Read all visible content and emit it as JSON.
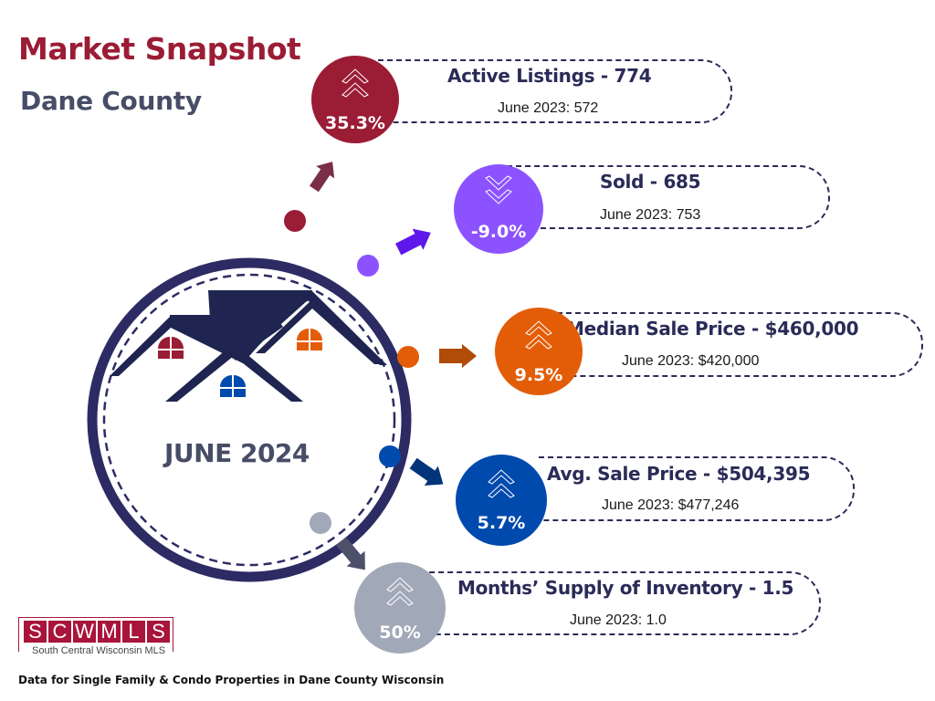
{
  "header": {
    "title": "Market Snapshot",
    "subtitle": "Dane County"
  },
  "center": {
    "period": "JUNE 2024",
    "ring_color": "#2d2b63"
  },
  "stats": [
    {
      "label": "Active Listings - 774",
      "prior": "June 2023: 572",
      "change": "35.3%",
      "direction": "up",
      "color": "#9b1c35",
      "arrow_color": "#7a2e4a",
      "icon": "double-chevron-up-icon"
    },
    {
      "label": "Sold  - 685",
      "prior": "June 2023: 753",
      "change": "-9.0%",
      "direction": "down",
      "color": "#8c52ff",
      "arrow_color": "#5e17eb",
      "icon": "double-chevron-down-icon"
    },
    {
      "label": "Median Sale Price - $460,000",
      "prior": "June 2023: $420,000",
      "change": "9.5%",
      "direction": "up",
      "color": "#e35d08",
      "arrow_color": "#b14b08",
      "icon": "double-chevron-up-icon"
    },
    {
      "label": "Avg. Sale Price - $504,395",
      "prior": "June 2023: $477,246",
      "change": "5.7%",
      "direction": "up",
      "color": "#004aad",
      "arrow_color": "#003579",
      "icon": "double-chevron-up-icon"
    },
    {
      "label": "Months’ Supply of Inventory - 1.5",
      "prior": "June 2023: 1.0",
      "change": "50%",
      "direction": "up",
      "color": "#a1a8b8",
      "arrow_color": "#4d5069",
      "icon": "double-chevron-up-icon"
    }
  ],
  "logo": {
    "letters": [
      "S",
      "C",
      "W",
      "M",
      "L",
      "S"
    ],
    "tagline": "South Central Wisconsin MLS",
    "color": "#a8143a"
  },
  "footer": {
    "note": "Data for Single Family & Condo Properties in Dane County Wisconsin"
  }
}
